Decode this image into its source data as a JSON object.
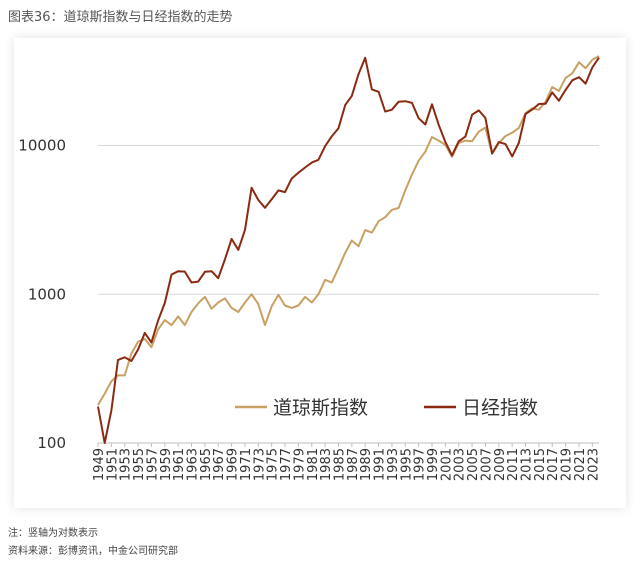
{
  "page": {
    "title": "图表36：道琼斯指数与日经指数的走势",
    "footnote_1": "注：竖轴为对数表示",
    "footnote_2": "资料来源：彭博资讯，中金公司研究部"
  },
  "chart_data": {
    "type": "line",
    "title": "",
    "xlabel": "",
    "ylabel": "",
    "yscale": "log",
    "ylim": [
      100,
      40000
    ],
    "xlim": [
      1949,
      2024
    ],
    "yticks": [
      100,
      1000,
      10000
    ],
    "ytick_labels": [
      "100",
      "1000",
      "10000"
    ],
    "xtick_labels": [
      "1949",
      "1951",
      "1953",
      "1955",
      "1957",
      "1959",
      "1961",
      "1963",
      "1965",
      "1967",
      "1969",
      "1971",
      "1973",
      "1975",
      "1977",
      "1979",
      "1981",
      "1983",
      "1985",
      "1987",
      "1989",
      "1991",
      "1993",
      "1995",
      "1997",
      "1999",
      "2001",
      "2003",
      "2005",
      "2007",
      "2009",
      "2011",
      "2013",
      "2015",
      "2017",
      "2019",
      "2021",
      "2023"
    ],
    "grid": "horizontal",
    "legend_position": "bottom-right",
    "series": [
      {
        "name": "道琼斯指数",
        "color": "#c9a063",
        "x": [
          1949,
          1950,
          1951,
          1952,
          1953,
          1954,
          1955,
          1956,
          1957,
          1958,
          1959,
          1960,
          1961,
          1962,
          1963,
          1964,
          1965,
          1966,
          1967,
          1968,
          1969,
          1970,
          1971,
          1972,
          1973,
          1974,
          1975,
          1976,
          1977,
          1978,
          1979,
          1980,
          1981,
          1982,
          1983,
          1984,
          1985,
          1986,
          1987,
          1988,
          1989,
          1990,
          1991,
          1992,
          1993,
          1994,
          1995,
          1996,
          1997,
          1998,
          1999,
          2000,
          2001,
          2002,
          2003,
          2004,
          2005,
          2006,
          2007,
          2008,
          2009,
          2010,
          2011,
          2012,
          2013,
          2014,
          2015,
          2016,
          2017,
          2018,
          2019,
          2020,
          2021,
          2022,
          2023,
          2024
        ],
        "values": [
          180,
          215,
          260,
          285,
          285,
          400,
          480,
          500,
          440,
          580,
          670,
          620,
          710,
          620,
          760,
          870,
          960,
          800,
          880,
          940,
          810,
          760,
          880,
          1000,
          860,
          620,
          830,
          990,
          840,
          810,
          840,
          960,
          880,
          1000,
          1250,
          1200,
          1500,
          1900,
          2300,
          2100,
          2700,
          2600,
          3100,
          3300,
          3700,
          3800,
          5000,
          6400,
          7900,
          9100,
          11400,
          10800,
          10100,
          8400,
          10400,
          10800,
          10700,
          12400,
          13200,
          8800,
          10400,
          11600,
          12200,
          13100,
          16500,
          17800,
          17400,
          19700,
          24700,
          23300,
          28500,
          30600,
          36300,
          33100,
          37700,
          40000
        ]
      },
      {
        "name": "日经指数",
        "color": "#8b2a12",
        "x": [
          1949,
          1950,
          1951,
          1952,
          1953,
          1954,
          1955,
          1956,
          1957,
          1958,
          1959,
          1960,
          1961,
          1962,
          1963,
          1964,
          1965,
          1966,
          1967,
          1968,
          1969,
          1970,
          1971,
          1972,
          1973,
          1974,
          1975,
          1976,
          1977,
          1978,
          1979,
          1980,
          1981,
          1982,
          1983,
          1984,
          1985,
          1986,
          1987,
          1988,
          1989,
          1990,
          1991,
          1992,
          1993,
          1994,
          1995,
          1996,
          1997,
          1998,
          1999,
          2000,
          2001,
          2002,
          2003,
          2004,
          2005,
          2006,
          2007,
          2008,
          2009,
          2010,
          2011,
          2012,
          2013,
          2014,
          2015,
          2016,
          2017,
          2018,
          2019,
          2020,
          2021,
          2022,
          2023,
          2024
        ],
        "values": [
          176,
          100,
          166,
          362,
          377,
          356,
          425,
          550,
          474,
          666,
          874,
          1356,
          1430,
          1420,
          1200,
          1216,
          1417,
          1430,
          1283,
          1714,
          2358,
          1987,
          2714,
          5207,
          4306,
          3817,
          4358,
          4990,
          4866,
          6001,
          6569,
          7116,
          7681,
          8017,
          9894,
          11543,
          13083,
          18701,
          21564,
          30159,
          38916,
          23849,
          22984,
          16925,
          17417,
          19723,
          19868,
          19361,
          15259,
          13842,
          18934,
          13786,
          10543,
          8579,
          10677,
          11489,
          16111,
          17226,
          15308,
          8860,
          10546,
          10229,
          8455,
          10395,
          16291,
          17451,
          19034,
          19114,
          22765,
          20015,
          23657,
          27444,
          28792,
          26095,
          33464,
          39000
        ]
      }
    ]
  }
}
